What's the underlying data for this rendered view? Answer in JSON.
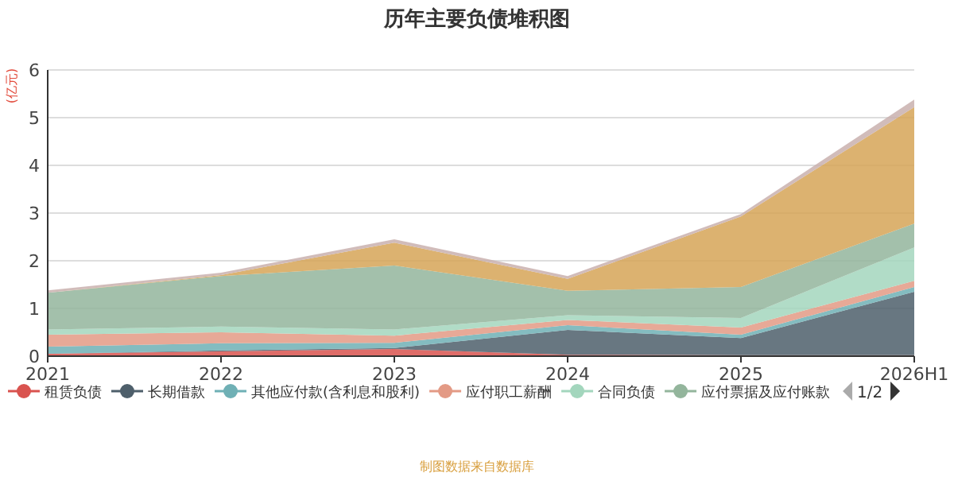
{
  "chart_data": {
    "type": "area",
    "stacked": true,
    "title": "历年主要负债堆积图",
    "ylabel": "(亿元)",
    "categories": [
      "2021",
      "2022",
      "2023",
      "2024",
      "2025",
      "2026H1"
    ],
    "ylim": [
      0,
      6
    ],
    "yticks": [
      0,
      1,
      2,
      3,
      4,
      5,
      6
    ],
    "grid": "y",
    "legend": "bottom",
    "series": [
      {
        "name": "租赁负债",
        "color": "#d9534f",
        "values": [
          0.05,
          0.1,
          0.15,
          0.03,
          0.02,
          0.02
        ]
      },
      {
        "name": "长期借款",
        "color": "#4e5f6b",
        "values": [
          0,
          0.02,
          0.02,
          0.52,
          0.36,
          1.33
        ]
      },
      {
        "name": "其他应付款(含利息和股利)",
        "color": "#6fb0b5",
        "values": [
          0.15,
          0.15,
          0.11,
          0.1,
          0.07,
          0.1
        ]
      },
      {
        "name": "应付职工薪酬",
        "color": "#e39a85",
        "values": [
          0.25,
          0.23,
          0.15,
          0.11,
          0.15,
          0.13
        ]
      },
      {
        "name": "合同负债",
        "color": "#a3d6bd",
        "values": [
          0.11,
          0.12,
          0.13,
          0.1,
          0.2,
          0.7
        ]
      },
      {
        "name": "应付票据及应付账款",
        "color": "#93b59c",
        "values": [
          0.77,
          1.06,
          1.34,
          0.51,
          0.65,
          0.5
        ]
      },
      {
        "color": "#d6a457",
        "values": [
          0,
          0.02,
          0.48,
          0.25,
          1.48,
          2.44
        ]
      },
      {
        "color": "#c9b0ae",
        "values": [
          0.05,
          0.05,
          0.07,
          0.06,
          0.05,
          0.16
        ]
      }
    ],
    "annotations": [
      "1/2",
      "制图数据来自数据库"
    ]
  }
}
